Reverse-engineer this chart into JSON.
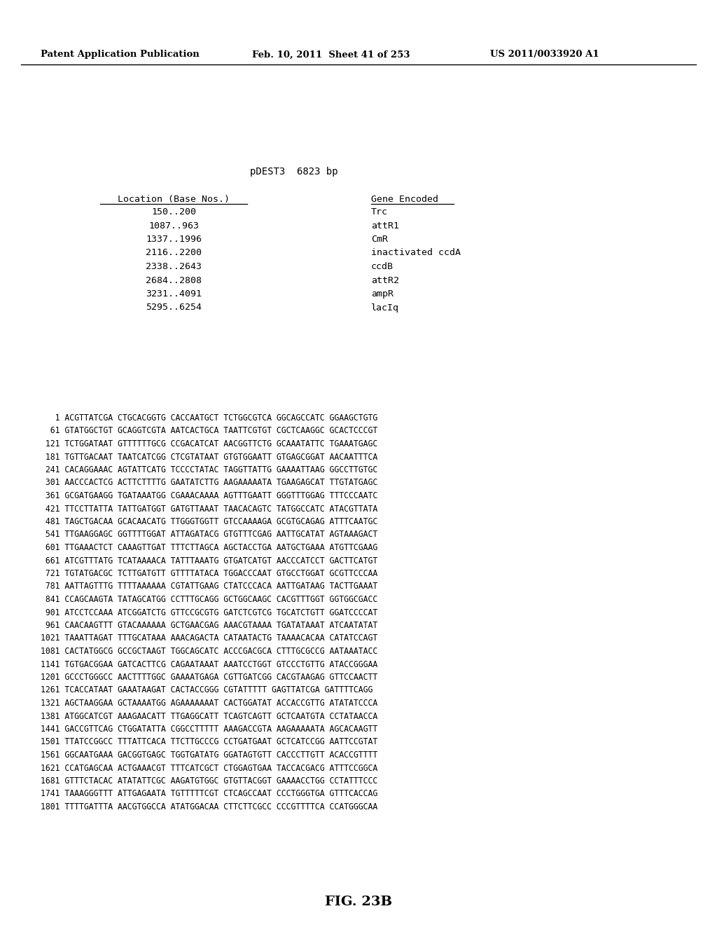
{
  "header_left": "Patent Application Publication",
  "header_mid": "Feb. 10, 2011  Sheet 41 of 253",
  "header_right": "US 2011/0033920 A1",
  "title": "pDEST3  6823 bp",
  "table_header_left": "Location (Base Nos.)",
  "table_header_right": "Gene Encoded",
  "table_rows": [
    [
      "150..200",
      "Trc"
    ],
    [
      "1087..963",
      "attR1"
    ],
    [
      "1337..1996",
      "CmR"
    ],
    [
      "2116..2200",
      "inactivated ccdA"
    ],
    [
      "2338..2643",
      "ccdB"
    ],
    [
      "2684..2808",
      "attR2"
    ],
    [
      "3231..4091",
      "ampR"
    ],
    [
      "5295..6254",
      "lacIq"
    ]
  ],
  "sequence_lines": [
    "   1 ACGTTATCGA CTGCACGGTG CACCAATGCT TCTGGCGTCA GGCAGCCATC GGAAGCTGTG",
    "  61 GTATGGCTGT GCAGGTCGTA AATCACTGCA TAATTCGTGT CGCTCAAGGC GCACTCCCGT",
    " 121 TCTGGATAAT GTTTTTTGCG CCGACATCAT AACGGTTCTG GCAAATATTC TGAAATGAGC",
    " 181 TGTTGACAAT TAATCATCGG CTCGTATAAT GTGTGGAATT GTGAGCGGAT AACAATTTCA",
    " 241 CACAGGAAAC AGTATTCATG TCCCCTATAC TAGGTTATTG GAAAATTAAG GGCCTTGTGC",
    " 301 AACCCACTCG ACTTCTTTTG GAATATCTTG AAGAAAAATA TGAAGAGCAT TTGTATGAGC",
    " 361 GCGATGAAGG TGATAAATGG CGAAACAAAA AGTTTGAATT GGGTTTGGAG TTTCCCAATC",
    " 421 TTCCTTATTA TATTGATGGT GATGTTAAAT TAACACAGTC TATGGCCATC ATACGTTATA",
    " 481 TAGCTGACAA GCACAACATG TTGGGTGGTT GTCCAAAAGA GCGTGCAGAG ATTTCAATGC",
    " 541 TTGAAGGAGC GGTTTTGGAT ATTAGATACG GTGTTTCGAG AATTGCATAT AGTAAAGACT",
    " 601 TTGAAACTCT CAAAGTTGAT TTTCTTAGCA AGCTACCTGA AATGCTGAAA ATGTTCGAAG",
    " 661 ATCGTTTATG TCATAAAACA TATTTAAATG GTGATCATGT AACCCATCCT GACTTCATGT",
    " 721 TGTATGACGC TCTTGATGTT GTTTTATACA TGGACCCAAT GTGCCTGGAT GCGTTCCCAA",
    " 781 AATTAGTTTG TTTTAAAAAA CGTATTGAAG CTATCCCACA AATTGATAAG TACTTGAAAT",
    " 841 CCAGCAAGTA TATAGCATGG CCTTTGCAGG GCTGGCAAGC CACGTTTGGT GGTGGCGACC",
    " 901 ATCCTCCAAA ATCGGATCTG GTTCCGCGTG GATCTCGTCG TGCATCTGTT GGATCCCCAT",
    " 961 CAACAAGTTT GTACAAAAAA GCTGAACGAG AAACGTAAAA TGATATAAAT ATCAATATAT",
    "1021 TAAATTAGAT TTTGCATAAA AAACAGACTA CATAATACTG TAAAACACAA CATATCCAGT",
    "1081 CACTATGGCG GCCGCTAAGT TGGCAGCATC ACCCGACGCA CTTTGCGCCG AATAAATACC",
    "1141 TGTGACGGAA GATCACTTCG CAGAATAAAT AAATCCTGGT GTCCCTGTTG ATACCGGGAA",
    "1201 GCCCTGGGCC AACTTTTGGC GAAAATGAGA CGTTGATCGG CACGTAAGAG GTTCCAACTT",
    "1261 TCACCATAAT GAAATAAGAT CACTACCGGG CGTATTTTT GAGTTATCGA GATTTTCAGG",
    "1321 AGCTAAGGAA GCTAAAATGG AGAAAAAAAT CACTGGATAT ACCACCGTTG ATATATCCCA",
    "1381 ATGGCATCGT AAAGAACATT TTGAGGCATT TCAGTCAGTT GCTCAATGTA CCTATAACCA",
    "1441 GACCGTTCAG CTGGATATTA CGGCCTTTTT AAAGACCGTA AAGAAAAATA AGCACAAGTT",
    "1501 TTATCCGGCC TTTATTCACA TTCTTGCCCG CCTGATGAAT GCTCATCCGG AATTCCGTAT",
    "1561 GGCAATGAAA GACGGTGAGC TGGTGATATG GGATAGTGTT CACCCTTGTT ACACCGTTTT",
    "1621 CCATGAGCAA ACTGAAACGT TTTCATCGCT CTGGAGTGAA TACCACGACG ATTTCCGGCA",
    "1681 GTTTCTACAC ATATATTCGC AAGATGTGGC GTGTTACGGT GAAAACCTGG CCTATTTCCC",
    "1741 TAAAGGGTTT ATTGAGAATA TGTTTTTCGT CTCAGCCAAT CCCTGGGTGA GTTTCACCAG",
    "1801 TTTTGATTTA AACGTGGCCA ATATGGACAA CTTCTTCGCC CCCGTTTTCA CCATGGGCAA"
  ],
  "figure_label": "FIG. 23B",
  "bg_color": "#ffffff",
  "text_color": "#000000"
}
